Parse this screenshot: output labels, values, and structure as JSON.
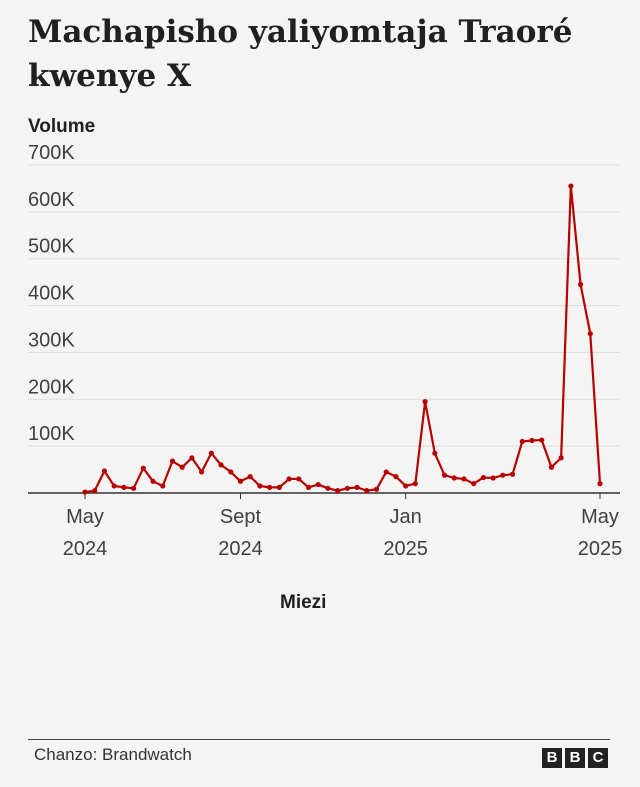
{
  "chart_data": {
    "type": "line",
    "title": "Machapisho yaliyomtaja Traoré kwenye X",
    "y_label": "Volume",
    "x_label": "Miezi",
    "categories": [
      "May 2024",
      null,
      null,
      null,
      null,
      null,
      null,
      null,
      null,
      null,
      null,
      null,
      null,
      null,
      null,
      null,
      "Sept 2024",
      null,
      null,
      null,
      null,
      null,
      null,
      null,
      null,
      null,
      null,
      null,
      null,
      null,
      null,
      null,
      null,
      "Jan 2025",
      null,
      null,
      null,
      null,
      null,
      null,
      null,
      null,
      null,
      null,
      null,
      null,
      null,
      null,
      null,
      null,
      null,
      null,
      null,
      "May 2025"
    ],
    "values": [
      2000,
      5000,
      47000,
      15000,
      12000,
      10000,
      53000,
      25000,
      15000,
      68000,
      55000,
      75000,
      45000,
      85000,
      60000,
      45000,
      25000,
      35000,
      15000,
      12000,
      12000,
      30000,
      30000,
      12000,
      18000,
      10000,
      5000,
      10000,
      12000,
      5000,
      8000,
      45000,
      35000,
      15000,
      20000,
      195000,
      85000,
      38000,
      32000,
      30000,
      20000,
      33000,
      32000,
      38000,
      40000,
      110000,
      112000,
      113000,
      55000,
      75000,
      655000,
      445000,
      340000,
      20000
    ],
    "color": "#b80000",
    "ylim": [
      0,
      700000
    ],
    "yticks": [
      {
        "value": 100000,
        "label": "100K"
      },
      {
        "value": 200000,
        "label": "200K"
      },
      {
        "value": 300000,
        "label": "300K"
      },
      {
        "value": 400000,
        "label": "400K"
      },
      {
        "value": 500000,
        "label": "500K"
      },
      {
        "value": 600000,
        "label": "600K"
      },
      {
        "value": 700000,
        "label": "700K"
      }
    ],
    "grid": true,
    "source": "Chanzo:  Brandwatch",
    "logo": [
      "B",
      "B",
      "C"
    ]
  }
}
